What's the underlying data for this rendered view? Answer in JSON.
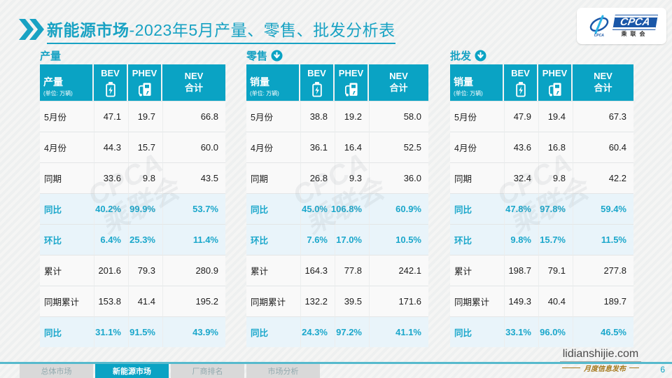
{
  "header": {
    "title_main": "新能源市场",
    "title_rest": "-2023年5月产量、零售、批发分析表"
  },
  "logo": {
    "cpca": "CPCA",
    "swoosh_caption": "CPCA",
    "association": "乘联会"
  },
  "watermark": "CPCA\n乘联会",
  "chart_data": [
    {
      "type": "table",
      "id": "production",
      "title": "产量",
      "arrow_icon": false,
      "header": {
        "label": "产量",
        "unit": "(单位: 万辆)",
        "columns": [
          {
            "label": "BEV",
            "icon": "battery-icon"
          },
          {
            "label": "PHEV",
            "icon": "charger-icon"
          },
          {
            "label": "NEV\n合计",
            "icon": ""
          }
        ]
      },
      "rows": [
        {
          "label": "5月份",
          "values": [
            "47.1",
            "19.7",
            "66.8"
          ],
          "highlight": false
        },
        {
          "label": "4月份",
          "values": [
            "44.3",
            "15.7",
            "60.0"
          ],
          "highlight": false
        },
        {
          "label": "同期",
          "values": [
            "33.6",
            "9.8",
            "43.5"
          ],
          "highlight": false
        },
        {
          "label": "同比",
          "values": [
            "40.2%",
            "99.9%",
            "53.7%"
          ],
          "highlight": true
        },
        {
          "label": "环比",
          "values": [
            "6.4%",
            "25.3%",
            "11.4%"
          ],
          "highlight": true
        },
        {
          "label": "累计",
          "values": [
            "201.6",
            "79.3",
            "280.9"
          ],
          "highlight": false
        },
        {
          "label": "同期累计",
          "values": [
            "153.8",
            "41.4",
            "195.2"
          ],
          "highlight": false
        },
        {
          "label": "同比",
          "values": [
            "31.1%",
            "91.5%",
            "43.9%"
          ],
          "highlight": true
        }
      ]
    },
    {
      "type": "table",
      "id": "retail",
      "title": "零售",
      "arrow_icon": true,
      "header": {
        "label": "销量",
        "unit": "(单位: 万辆)",
        "columns": [
          {
            "label": "BEV",
            "icon": "battery-icon"
          },
          {
            "label": "PHEV",
            "icon": "charger-icon"
          },
          {
            "label": "NEV\n合计",
            "icon": ""
          }
        ]
      },
      "rows": [
        {
          "label": "5月份",
          "values": [
            "38.8",
            "19.2",
            "58.0"
          ],
          "highlight": false
        },
        {
          "label": "4月份",
          "values": [
            "36.1",
            "16.4",
            "52.5"
          ],
          "highlight": false
        },
        {
          "label": "同期",
          "values": [
            "26.8",
            "9.3",
            "36.0"
          ],
          "highlight": false
        },
        {
          "label": "同比",
          "values": [
            "45.0%",
            "106.8%",
            "60.9%"
          ],
          "highlight": true
        },
        {
          "label": "环比",
          "values": [
            "7.6%",
            "17.0%",
            "10.5%"
          ],
          "highlight": true
        },
        {
          "label": "累计",
          "values": [
            "164.3",
            "77.8",
            "242.1"
          ],
          "highlight": false
        },
        {
          "label": "同期累计",
          "values": [
            "132.2",
            "39.5",
            "171.6"
          ],
          "highlight": false
        },
        {
          "label": "同比",
          "values": [
            "24.3%",
            "97.2%",
            "41.1%"
          ],
          "highlight": true
        }
      ]
    },
    {
      "type": "table",
      "id": "wholesale",
      "title": "批发",
      "arrow_icon": true,
      "header": {
        "label": "销量",
        "unit": "(单位: 万辆)",
        "columns": [
          {
            "label": "BEV",
            "icon": "battery-icon"
          },
          {
            "label": "PHEV",
            "icon": "charger-icon"
          },
          {
            "label": "NEV\n合计",
            "icon": ""
          }
        ]
      },
      "rows": [
        {
          "label": "5月份",
          "values": [
            "47.9",
            "19.4",
            "67.3"
          ],
          "highlight": false
        },
        {
          "label": "4月份",
          "values": [
            "43.6",
            "16.8",
            "60.4"
          ],
          "highlight": false
        },
        {
          "label": "同期",
          "values": [
            "32.4",
            "9.8",
            "42.2"
          ],
          "highlight": false
        },
        {
          "label": "同比",
          "values": [
            "47.8%",
            "97.8%",
            "59.4%"
          ],
          "highlight": true
        },
        {
          "label": "环比",
          "values": [
            "9.8%",
            "15.7%",
            "11.5%"
          ],
          "highlight": true
        },
        {
          "label": "累计",
          "values": [
            "198.7",
            "79.1",
            "277.8"
          ],
          "highlight": false
        },
        {
          "label": "同期累计",
          "values": [
            "149.3",
            "40.4",
            "189.7"
          ],
          "highlight": false
        },
        {
          "label": "同比",
          "values": [
            "33.1%",
            "96.0%",
            "46.5%"
          ],
          "highlight": true
        }
      ]
    }
  ],
  "footer": {
    "tabs": [
      {
        "id": "overall-market",
        "label": "总体市场",
        "active": false
      },
      {
        "id": "new-energy-market",
        "label": "新能源市场",
        "active": true
      },
      {
        "id": "oem-ranking",
        "label": "厂商排名",
        "active": false
      },
      {
        "id": "market-analysis",
        "label": "市场分析",
        "active": false
      }
    ],
    "site": "lidianshijie.com",
    "tagline": "月度信息发布",
    "page_number": "6"
  },
  "colors": {
    "accent": "#0aa3c4",
    "highlight_bg": "#e9f4fa",
    "highlight_text": "#1ba7cb",
    "logo_blue": "#1a57a8",
    "tagline_gold": "#a6791d"
  }
}
